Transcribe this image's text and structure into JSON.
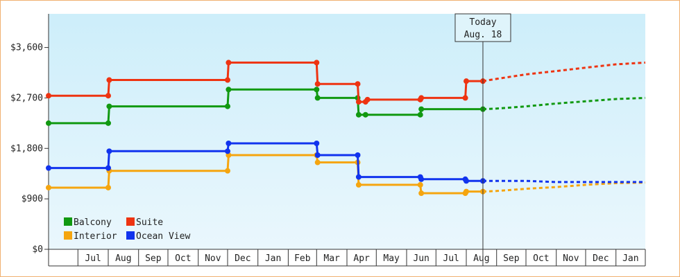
{
  "chart_data": {
    "type": "line",
    "title": "",
    "xlabel": "",
    "ylabel": "",
    "ylim": [
      0,
      4200
    ],
    "y_ticks": [
      0,
      900,
      1800,
      2700,
      3600
    ],
    "y_tick_labels": [
      "$0",
      "$900",
      "$1,800",
      "$2,700",
      "$3,600"
    ],
    "x_range": [
      "2023-06-01",
      "2025-01-31"
    ],
    "month_labels": [
      "Jul",
      "Aug",
      "Sep",
      "Oct",
      "Nov",
      "Dec",
      "Jan",
      "Feb",
      "Mar",
      "Apr",
      "May",
      "Jun",
      "Jul",
      "Aug",
      "Sep",
      "Oct",
      "Nov",
      "Dec",
      "Jan"
    ],
    "month_starts": [
      "2023-07-01",
      "2023-08-01",
      "2023-09-01",
      "2023-10-01",
      "2023-11-01",
      "2023-12-01",
      "2024-01-01",
      "2024-02-01",
      "2024-03-01",
      "2024-04-01",
      "2024-05-01",
      "2024-06-01",
      "2024-07-01",
      "2024-08-01",
      "2024-09-01",
      "2024-10-01",
      "2024-11-01",
      "2024-12-01",
      "2025-01-01"
    ],
    "today": {
      "label_line1": "Today",
      "label_line2": "Aug. 18",
      "date": "2024-08-18"
    },
    "grid": false,
    "background_gradient": [
      "#cdeefa",
      "#eaf7fd"
    ],
    "legend_position": "bottom-left",
    "series": [
      {
        "name": "Balcony",
        "color": "#119911",
        "points": [
          [
            "2023-06-01",
            2250
          ],
          [
            "2023-08-01",
            2250
          ],
          [
            "2023-08-02",
            2550
          ],
          [
            "2023-12-01",
            2550
          ],
          [
            "2023-12-02",
            2850
          ],
          [
            "2024-03-01",
            2850
          ],
          [
            "2024-03-02",
            2700
          ],
          [
            "2024-04-12",
            2700
          ],
          [
            "2024-04-13",
            2400
          ],
          [
            "2024-04-20",
            2400
          ],
          [
            "2024-06-15",
            2400
          ],
          [
            "2024-06-16",
            2500
          ],
          [
            "2024-08-18",
            2500
          ]
        ],
        "forecast": [
          [
            "2024-08-18",
            2500
          ],
          [
            "2024-09-01",
            2510
          ],
          [
            "2024-10-01",
            2550
          ],
          [
            "2024-11-01",
            2600
          ],
          [
            "2024-12-01",
            2640
          ],
          [
            "2025-01-01",
            2680
          ],
          [
            "2025-01-31",
            2700
          ]
        ]
      },
      {
        "name": "Suite",
        "color": "#ee3311",
        "points": [
          [
            "2023-06-01",
            2740
          ],
          [
            "2023-08-01",
            2740
          ],
          [
            "2023-08-02",
            3020
          ],
          [
            "2023-12-01",
            3020
          ],
          [
            "2023-12-02",
            3330
          ],
          [
            "2024-03-01",
            3330
          ],
          [
            "2024-03-02",
            2950
          ],
          [
            "2024-04-12",
            2950
          ],
          [
            "2024-04-13",
            2630
          ],
          [
            "2024-04-20",
            2630
          ],
          [
            "2024-04-22",
            2670
          ],
          [
            "2024-06-15",
            2670
          ],
          [
            "2024-06-16",
            2700
          ],
          [
            "2024-07-31",
            2700
          ],
          [
            "2024-08-01",
            3000
          ],
          [
            "2024-08-18",
            3000
          ]
        ],
        "forecast": [
          [
            "2024-08-18",
            3000
          ],
          [
            "2024-09-01",
            3040
          ],
          [
            "2024-10-01",
            3120
          ],
          [
            "2024-11-01",
            3180
          ],
          [
            "2024-12-01",
            3240
          ],
          [
            "2025-01-01",
            3300
          ],
          [
            "2025-01-31",
            3330
          ]
        ]
      },
      {
        "name": "Interior",
        "color": "#f5a50f",
        "points": [
          [
            "2023-06-01",
            1100
          ],
          [
            "2023-08-01",
            1100
          ],
          [
            "2023-08-02",
            1400
          ],
          [
            "2023-12-01",
            1400
          ],
          [
            "2023-12-02",
            1680
          ],
          [
            "2024-03-01",
            1680
          ],
          [
            "2024-03-02",
            1550
          ],
          [
            "2024-04-12",
            1550
          ],
          [
            "2024-04-13",
            1150
          ],
          [
            "2024-06-15",
            1150
          ],
          [
            "2024-06-16",
            1000
          ],
          [
            "2024-07-31",
            1000
          ],
          [
            "2024-08-01",
            1030
          ],
          [
            "2024-08-18",
            1030
          ]
        ],
        "forecast": [
          [
            "2024-08-18",
            1030
          ],
          [
            "2024-09-01",
            1040
          ],
          [
            "2024-10-01",
            1080
          ],
          [
            "2024-11-01",
            1110
          ],
          [
            "2024-12-01",
            1150
          ],
          [
            "2025-01-01",
            1180
          ],
          [
            "2025-01-31",
            1190
          ]
        ]
      },
      {
        "name": "Ocean View",
        "color": "#1133ee",
        "points": [
          [
            "2023-06-01",
            1450
          ],
          [
            "2023-08-01",
            1450
          ],
          [
            "2023-08-02",
            1750
          ],
          [
            "2023-12-01",
            1750
          ],
          [
            "2023-12-02",
            1890
          ],
          [
            "2024-03-01",
            1890
          ],
          [
            "2024-03-02",
            1680
          ],
          [
            "2024-04-12",
            1680
          ],
          [
            "2024-04-13",
            1290
          ],
          [
            "2024-06-15",
            1290
          ],
          [
            "2024-06-16",
            1250
          ],
          [
            "2024-07-31",
            1250
          ],
          [
            "2024-08-01",
            1220
          ],
          [
            "2024-08-18",
            1220
          ]
        ],
        "forecast": [
          [
            "2024-08-18",
            1220
          ],
          [
            "2024-09-01",
            1220
          ],
          [
            "2024-10-01",
            1220
          ],
          [
            "2024-11-01",
            1200
          ],
          [
            "2024-12-01",
            1200
          ],
          [
            "2025-01-01",
            1200
          ],
          [
            "2025-01-31",
            1200
          ]
        ]
      }
    ]
  }
}
